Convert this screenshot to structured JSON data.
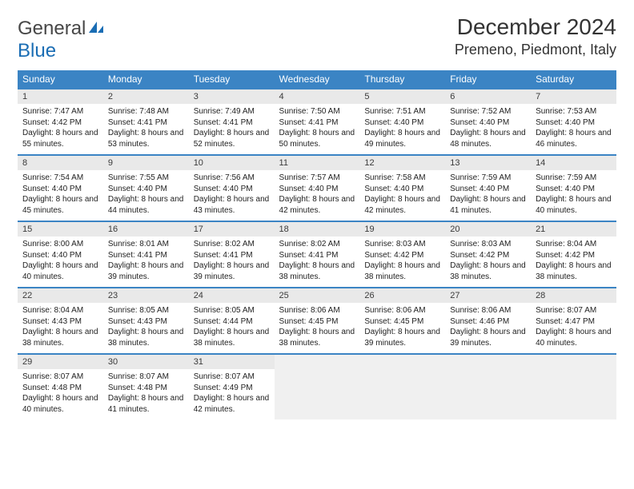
{
  "logo": {
    "word1": "General",
    "word2": "Blue"
  },
  "title": "December 2024",
  "location": "Premeno, Piedmont, Italy",
  "colors": {
    "header_bg": "#3b84c4",
    "header_text": "#ffffff",
    "daynum_bg": "#e9e9e9",
    "border": "#3b84c4",
    "empty_bg": "#f0f0f0",
    "logo_gray": "#474747",
    "logo_blue": "#1a6db4"
  },
  "typography": {
    "title_fontsize": 28,
    "location_fontsize": 18,
    "dayhead_fontsize": 12,
    "daynum_fontsize": 11,
    "body_fontsize": 10
  },
  "dayNames": [
    "Sunday",
    "Monday",
    "Tuesday",
    "Wednesday",
    "Thursday",
    "Friday",
    "Saturday"
  ],
  "days": [
    {
      "n": "1",
      "sunrise": "7:47 AM",
      "sunset": "4:42 PM",
      "daylight": "8 hours and 55 minutes."
    },
    {
      "n": "2",
      "sunrise": "7:48 AM",
      "sunset": "4:41 PM",
      "daylight": "8 hours and 53 minutes."
    },
    {
      "n": "3",
      "sunrise": "7:49 AM",
      "sunset": "4:41 PM",
      "daylight": "8 hours and 52 minutes."
    },
    {
      "n": "4",
      "sunrise": "7:50 AM",
      "sunset": "4:41 PM",
      "daylight": "8 hours and 50 minutes."
    },
    {
      "n": "5",
      "sunrise": "7:51 AM",
      "sunset": "4:40 PM",
      "daylight": "8 hours and 49 minutes."
    },
    {
      "n": "6",
      "sunrise": "7:52 AM",
      "sunset": "4:40 PM",
      "daylight": "8 hours and 48 minutes."
    },
    {
      "n": "7",
      "sunrise": "7:53 AM",
      "sunset": "4:40 PM",
      "daylight": "8 hours and 46 minutes."
    },
    {
      "n": "8",
      "sunrise": "7:54 AM",
      "sunset": "4:40 PM",
      "daylight": "8 hours and 45 minutes."
    },
    {
      "n": "9",
      "sunrise": "7:55 AM",
      "sunset": "4:40 PM",
      "daylight": "8 hours and 44 minutes."
    },
    {
      "n": "10",
      "sunrise": "7:56 AM",
      "sunset": "4:40 PM",
      "daylight": "8 hours and 43 minutes."
    },
    {
      "n": "11",
      "sunrise": "7:57 AM",
      "sunset": "4:40 PM",
      "daylight": "8 hours and 42 minutes."
    },
    {
      "n": "12",
      "sunrise": "7:58 AM",
      "sunset": "4:40 PM",
      "daylight": "8 hours and 42 minutes."
    },
    {
      "n": "13",
      "sunrise": "7:59 AM",
      "sunset": "4:40 PM",
      "daylight": "8 hours and 41 minutes."
    },
    {
      "n": "14",
      "sunrise": "7:59 AM",
      "sunset": "4:40 PM",
      "daylight": "8 hours and 40 minutes."
    },
    {
      "n": "15",
      "sunrise": "8:00 AM",
      "sunset": "4:40 PM",
      "daylight": "8 hours and 40 minutes."
    },
    {
      "n": "16",
      "sunrise": "8:01 AM",
      "sunset": "4:41 PM",
      "daylight": "8 hours and 39 minutes."
    },
    {
      "n": "17",
      "sunrise": "8:02 AM",
      "sunset": "4:41 PM",
      "daylight": "8 hours and 39 minutes."
    },
    {
      "n": "18",
      "sunrise": "8:02 AM",
      "sunset": "4:41 PM",
      "daylight": "8 hours and 38 minutes."
    },
    {
      "n": "19",
      "sunrise": "8:03 AM",
      "sunset": "4:42 PM",
      "daylight": "8 hours and 38 minutes."
    },
    {
      "n": "20",
      "sunrise": "8:03 AM",
      "sunset": "4:42 PM",
      "daylight": "8 hours and 38 minutes."
    },
    {
      "n": "21",
      "sunrise": "8:04 AM",
      "sunset": "4:42 PM",
      "daylight": "8 hours and 38 minutes."
    },
    {
      "n": "22",
      "sunrise": "8:04 AM",
      "sunset": "4:43 PM",
      "daylight": "8 hours and 38 minutes."
    },
    {
      "n": "23",
      "sunrise": "8:05 AM",
      "sunset": "4:43 PM",
      "daylight": "8 hours and 38 minutes."
    },
    {
      "n": "24",
      "sunrise": "8:05 AM",
      "sunset": "4:44 PM",
      "daylight": "8 hours and 38 minutes."
    },
    {
      "n": "25",
      "sunrise": "8:06 AM",
      "sunset": "4:45 PM",
      "daylight": "8 hours and 38 minutes."
    },
    {
      "n": "26",
      "sunrise": "8:06 AM",
      "sunset": "4:45 PM",
      "daylight": "8 hours and 39 minutes."
    },
    {
      "n": "27",
      "sunrise": "8:06 AM",
      "sunset": "4:46 PM",
      "daylight": "8 hours and 39 minutes."
    },
    {
      "n": "28",
      "sunrise": "8:07 AM",
      "sunset": "4:47 PM",
      "daylight": "8 hours and 40 minutes."
    },
    {
      "n": "29",
      "sunrise": "8:07 AM",
      "sunset": "4:48 PM",
      "daylight": "8 hours and 40 minutes."
    },
    {
      "n": "30",
      "sunrise": "8:07 AM",
      "sunset": "4:48 PM",
      "daylight": "8 hours and 41 minutes."
    },
    {
      "n": "31",
      "sunrise": "8:07 AM",
      "sunset": "4:49 PM",
      "daylight": "8 hours and 42 minutes."
    }
  ],
  "labels": {
    "sunrise": "Sunrise:",
    "sunset": "Sunset:",
    "daylight": "Daylight:"
  }
}
